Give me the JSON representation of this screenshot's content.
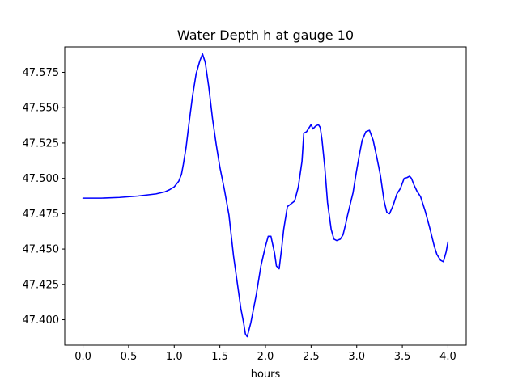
{
  "chart_data": {
    "type": "line",
    "title": "Water Depth h at gauge 10",
    "xlabel": "hours",
    "ylabel": "",
    "xlim": [
      -0.2,
      4.2
    ],
    "ylim": [
      47.382,
      47.593
    ],
    "x_ticks": [
      0.0,
      0.5,
      1.0,
      1.5,
      2.0,
      2.5,
      3.0,
      3.5,
      4.0
    ],
    "x_tick_labels": [
      "0.0",
      "0.5",
      "1.0",
      "1.5",
      "2.0",
      "2.5",
      "3.0",
      "3.5",
      "4.0"
    ],
    "y_ticks": [
      47.4,
      47.425,
      47.45,
      47.475,
      47.5,
      47.525,
      47.55,
      47.575
    ],
    "y_tick_labels": [
      "47.400",
      "47.425",
      "47.450",
      "47.475",
      "47.500",
      "47.525",
      "47.550",
      "47.575"
    ],
    "grid": false,
    "legend": false,
    "series": [
      {
        "color": "#0000ff",
        "x": [
          0.0,
          0.2,
          0.4,
          0.6,
          0.8,
          0.9,
          0.95,
          1.0,
          1.05,
          1.08,
          1.1,
          1.13,
          1.16,
          1.2,
          1.24,
          1.28,
          1.31,
          1.34,
          1.38,
          1.42,
          1.46,
          1.5,
          1.55,
          1.6,
          1.65,
          1.7,
          1.73,
          1.76,
          1.78,
          1.8,
          1.84,
          1.9,
          1.95,
          2.0,
          2.03,
          2.06,
          2.1,
          2.12,
          2.15,
          2.18,
          2.2,
          2.24,
          2.28,
          2.32,
          2.36,
          2.4,
          2.42,
          2.45,
          2.48,
          2.5,
          2.52,
          2.55,
          2.58,
          2.6,
          2.62,
          2.65,
          2.68,
          2.72,
          2.75,
          2.78,
          2.82,
          2.85,
          2.88,
          2.9,
          2.93,
          2.96,
          3.0,
          3.03,
          3.06,
          3.1,
          3.14,
          3.18,
          3.22,
          3.26,
          3.3,
          3.33,
          3.36,
          3.4,
          3.44,
          3.48,
          3.52,
          3.55,
          3.58,
          3.6,
          3.63,
          3.66,
          3.7,
          3.75,
          3.8,
          3.85,
          3.88,
          3.92,
          3.95,
          3.98,
          4.0
        ],
        "y": [
          47.486,
          47.486,
          47.4865,
          47.4875,
          47.489,
          47.4905,
          47.492,
          47.494,
          47.498,
          47.503,
          47.51,
          47.522,
          47.538,
          47.558,
          47.574,
          47.583,
          47.588,
          47.582,
          47.564,
          47.542,
          47.524,
          47.508,
          47.492,
          47.474,
          47.445,
          47.422,
          47.408,
          47.398,
          47.39,
          47.388,
          47.398,
          47.418,
          47.438,
          47.452,
          47.459,
          47.459,
          47.447,
          47.438,
          47.436,
          47.452,
          47.464,
          47.48,
          47.482,
          47.484,
          47.494,
          47.512,
          47.532,
          47.533,
          47.536,
          47.538,
          47.535,
          47.537,
          47.538,
          47.536,
          47.527,
          47.508,
          47.483,
          47.464,
          47.457,
          47.456,
          47.457,
          47.46,
          47.468,
          47.474,
          47.482,
          47.49,
          47.506,
          47.517,
          47.527,
          47.533,
          47.534,
          47.527,
          47.515,
          47.502,
          47.484,
          47.476,
          47.475,
          47.481,
          47.489,
          47.493,
          47.5,
          47.5005,
          47.5015,
          47.5,
          47.495,
          47.491,
          47.487,
          47.477,
          47.465,
          47.452,
          47.446,
          47.442,
          47.441,
          47.448,
          47.455
        ]
      }
    ]
  }
}
